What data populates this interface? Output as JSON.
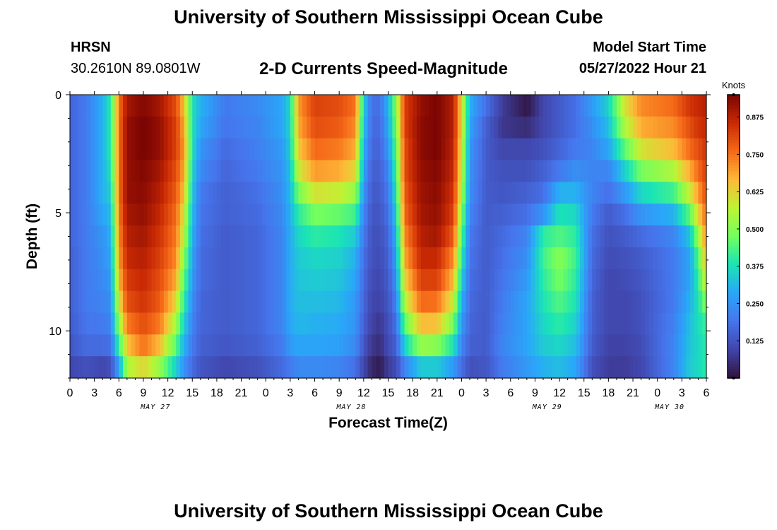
{
  "header": {
    "main_title": "University of Southern Mississippi Ocean Cube",
    "station_id": "HRSN",
    "station_coords": "30.2610N  89.0801W",
    "plot_title": "2-D Currents Speed-Magnitude",
    "model_start_label": "Model Start Time",
    "model_start_value": "05/27/2022 Hour 21"
  },
  "footer": {
    "title": "University of Southern Mississippi Ocean Cube"
  },
  "chart_data": {
    "type": "heatmap",
    "title": "2-D Currents Speed-Magnitude",
    "xlabel": "Forecast Time(Z)",
    "ylabel": "Depth (ft)",
    "colorbar_label": "Knots",
    "xlim": [
      0,
      78
    ],
    "ylim": [
      12,
      0
    ],
    "clim": [
      0,
      0.95
    ],
    "x_ticks": [
      0,
      3,
      6,
      9,
      12,
      15,
      18,
      21,
      24,
      27,
      30,
      33,
      36,
      39,
      42,
      45,
      48,
      51,
      54,
      57,
      60,
      63,
      66,
      69,
      72,
      75,
      78
    ],
    "x_tick_labels": [
      "0",
      "3",
      "6",
      "9",
      "12",
      "15",
      "18",
      "21",
      "0",
      "3",
      "6",
      "9",
      "12",
      "15",
      "18",
      "21",
      "0",
      "3",
      "6",
      "9",
      "12",
      "15",
      "18",
      "21",
      "0",
      "3",
      "6"
    ],
    "date_labels": [
      {
        "x": 10.5,
        "label": "MAY 27"
      },
      {
        "x": 34.5,
        "label": "MAY 28"
      },
      {
        "x": 58.5,
        "label": "MAY 29"
      },
      {
        "x": 73.5,
        "label": "MAY 30"
      }
    ],
    "y_ticks": [
      0,
      5,
      10
    ],
    "y_tick_labels": [
      "0",
      "5",
      "10"
    ],
    "colorbar_ticks": [
      0.125,
      0.25,
      0.375,
      0.5,
      0.625,
      0.75,
      0.875
    ],
    "colorbar_tick_labels": [
      "0.125",
      "0.250",
      "0.375",
      "0.500",
      "0.625",
      "0.750",
      "0.875"
    ],
    "depths": [
      0,
      1,
      2,
      3,
      4,
      5,
      6,
      7,
      8,
      9,
      10,
      11,
      12
    ],
    "profiles": [
      {
        "hour": 0,
        "speeds": [
          0.16,
          0.16,
          0.16,
          0.16,
          0.16,
          0.16,
          0.16,
          0.15,
          0.15,
          0.15,
          0.14,
          0.13,
          0.1
        ]
      },
      {
        "hour": 2,
        "speeds": [
          0.2,
          0.2,
          0.2,
          0.2,
          0.2,
          0.2,
          0.2,
          0.2,
          0.2,
          0.2,
          0.19,
          0.17,
          0.12
        ]
      },
      {
        "hour": 4,
        "speeds": [
          0.3,
          0.3,
          0.3,
          0.3,
          0.3,
          0.28,
          0.25,
          0.24,
          0.23,
          0.22,
          0.2,
          0.17,
          0.1
        ]
      },
      {
        "hour": 5,
        "speeds": [
          0.4,
          0.4,
          0.4,
          0.38,
          0.35,
          0.32,
          0.3,
          0.28,
          0.26,
          0.24,
          0.22,
          0.18,
          0.12
        ]
      },
      {
        "hour": 6,
        "speeds": [
          0.75,
          0.75,
          0.75,
          0.75,
          0.75,
          0.74,
          0.72,
          0.7,
          0.66,
          0.6,
          0.52,
          0.42,
          0.28
        ]
      },
      {
        "hour": 7,
        "speeds": [
          0.9,
          0.92,
          0.92,
          0.92,
          0.92,
          0.9,
          0.88,
          0.86,
          0.83,
          0.8,
          0.74,
          0.65,
          0.55
        ]
      },
      {
        "hour": 9,
        "speeds": [
          0.94,
          0.95,
          0.95,
          0.94,
          0.93,
          0.92,
          0.9,
          0.88,
          0.86,
          0.84,
          0.8,
          0.75,
          0.62
        ]
      },
      {
        "hour": 11,
        "speeds": [
          0.9,
          0.92,
          0.92,
          0.9,
          0.88,
          0.86,
          0.84,
          0.82,
          0.8,
          0.78,
          0.74,
          0.66,
          0.52
        ]
      },
      {
        "hour": 13,
        "speeds": [
          0.8,
          0.82,
          0.82,
          0.8,
          0.78,
          0.76,
          0.74,
          0.72,
          0.68,
          0.62,
          0.54,
          0.45,
          0.35
        ]
      },
      {
        "hour": 14,
        "speeds": [
          0.65,
          0.68,
          0.7,
          0.68,
          0.65,
          0.6,
          0.56,
          0.5,
          0.45,
          0.4,
          0.35,
          0.3,
          0.25
        ]
      },
      {
        "hour": 15,
        "speeds": [
          0.38,
          0.38,
          0.38,
          0.36,
          0.34,
          0.32,
          0.3,
          0.28,
          0.26,
          0.24,
          0.22,
          0.2,
          0.17
        ]
      },
      {
        "hour": 16,
        "speeds": [
          0.3,
          0.28,
          0.25,
          0.23,
          0.2,
          0.19,
          0.18,
          0.17,
          0.17,
          0.16,
          0.16,
          0.15,
          0.13
        ]
      },
      {
        "hour": 19,
        "speeds": [
          0.2,
          0.19,
          0.17,
          0.16,
          0.15,
          0.15,
          0.14,
          0.14,
          0.14,
          0.14,
          0.14,
          0.13,
          0.1
        ]
      },
      {
        "hour": 23,
        "speeds": [
          0.23,
          0.22,
          0.21,
          0.2,
          0.18,
          0.17,
          0.16,
          0.16,
          0.16,
          0.16,
          0.16,
          0.15,
          0.12
        ]
      },
      {
        "hour": 26,
        "speeds": [
          0.28,
          0.28,
          0.26,
          0.25,
          0.24,
          0.23,
          0.22,
          0.22,
          0.22,
          0.22,
          0.22,
          0.2,
          0.17
        ]
      },
      {
        "hour": 27,
        "speeds": [
          0.36,
          0.35,
          0.34,
          0.32,
          0.31,
          0.3,
          0.29,
          0.29,
          0.29,
          0.29,
          0.28,
          0.26,
          0.2
        ]
      },
      {
        "hour": 28,
        "speeds": [
          0.7,
          0.68,
          0.64,
          0.58,
          0.48,
          0.4,
          0.36,
          0.34,
          0.33,
          0.32,
          0.31,
          0.28,
          0.23
        ]
      },
      {
        "hour": 30,
        "speeds": [
          0.82,
          0.8,
          0.76,
          0.7,
          0.6,
          0.48,
          0.4,
          0.36,
          0.34,
          0.32,
          0.3,
          0.28,
          0.23
        ]
      },
      {
        "hour": 33,
        "speeds": [
          0.8,
          0.78,
          0.74,
          0.68,
          0.58,
          0.46,
          0.38,
          0.35,
          0.33,
          0.31,
          0.29,
          0.27,
          0.22
        ]
      },
      {
        "hour": 35,
        "speeds": [
          0.75,
          0.72,
          0.68,
          0.62,
          0.52,
          0.42,
          0.34,
          0.3,
          0.28,
          0.26,
          0.25,
          0.23,
          0.18
        ]
      },
      {
        "hour": 36,
        "speeds": [
          0.35,
          0.33,
          0.3,
          0.28,
          0.25,
          0.22,
          0.2,
          0.18,
          0.17,
          0.16,
          0.15,
          0.13,
          0.1
        ]
      },
      {
        "hour": 37,
        "speeds": [
          0.18,
          0.17,
          0.16,
          0.15,
          0.14,
          0.13,
          0.12,
          0.12,
          0.11,
          0.1,
          0.09,
          0.07,
          0.04
        ]
      },
      {
        "hour": 38,
        "speeds": [
          0.18,
          0.17,
          0.16,
          0.15,
          0.14,
          0.13,
          0.12,
          0.11,
          0.1,
          0.09,
          0.07,
          0.05,
          0.02
        ]
      },
      {
        "hour": 39,
        "speeds": [
          0.3,
          0.28,
          0.25,
          0.22,
          0.2,
          0.18,
          0.16,
          0.15,
          0.14,
          0.13,
          0.12,
          0.11,
          0.08
        ]
      },
      {
        "hour": 40,
        "speeds": [
          0.5,
          0.48,
          0.45,
          0.42,
          0.38,
          0.34,
          0.3,
          0.27,
          0.24,
          0.21,
          0.18,
          0.15,
          0.11
        ]
      },
      {
        "hour": 41,
        "speeds": [
          0.82,
          0.82,
          0.8,
          0.8,
          0.78,
          0.76,
          0.72,
          0.68,
          0.62,
          0.55,
          0.45,
          0.35,
          0.22
        ]
      },
      {
        "hour": 43,
        "speeds": [
          0.92,
          0.93,
          0.93,
          0.92,
          0.91,
          0.9,
          0.88,
          0.86,
          0.82,
          0.76,
          0.66,
          0.52,
          0.34
        ]
      },
      {
        "hour": 45,
        "speeds": [
          0.95,
          0.95,
          0.95,
          0.94,
          0.93,
          0.92,
          0.9,
          0.86,
          0.82,
          0.75,
          0.65,
          0.5,
          0.34
        ]
      },
      {
        "hour": 47,
        "speeds": [
          0.88,
          0.88,
          0.87,
          0.86,
          0.84,
          0.82,
          0.78,
          0.72,
          0.66,
          0.58,
          0.48,
          0.38,
          0.26
        ]
      },
      {
        "hour": 48,
        "speeds": [
          0.62,
          0.62,
          0.6,
          0.58,
          0.55,
          0.5,
          0.45,
          0.4,
          0.35,
          0.3,
          0.26,
          0.22,
          0.18
        ]
      },
      {
        "hour": 49,
        "speeds": [
          0.3,
          0.28,
          0.26,
          0.25,
          0.24,
          0.22,
          0.2,
          0.19,
          0.18,
          0.17,
          0.16,
          0.15,
          0.12
        ]
      },
      {
        "hour": 51,
        "speeds": [
          0.18,
          0.15,
          0.14,
          0.14,
          0.14,
          0.14,
          0.14,
          0.14,
          0.14,
          0.14,
          0.14,
          0.14,
          0.13
        ]
      },
      {
        "hour": 53,
        "speeds": [
          0.08,
          0.07,
          0.1,
          0.12,
          0.13,
          0.15,
          0.17,
          0.18,
          0.19,
          0.2,
          0.21,
          0.22,
          0.2
        ]
      },
      {
        "hour": 56,
        "speeds": [
          0.01,
          0.05,
          0.1,
          0.12,
          0.15,
          0.18,
          0.22,
          0.24,
          0.26,
          0.28,
          0.28,
          0.28,
          0.26
        ]
      },
      {
        "hour": 58,
        "speeds": [
          0.1,
          0.1,
          0.12,
          0.15,
          0.18,
          0.25,
          0.4,
          0.42,
          0.4,
          0.38,
          0.36,
          0.34,
          0.3
        ]
      },
      {
        "hour": 60,
        "speeds": [
          0.14,
          0.14,
          0.16,
          0.2,
          0.3,
          0.38,
          0.44,
          0.5,
          0.48,
          0.44,
          0.4,
          0.36,
          0.32
        ]
      },
      {
        "hour": 62,
        "speeds": [
          0.18,
          0.18,
          0.2,
          0.24,
          0.3,
          0.36,
          0.4,
          0.42,
          0.4,
          0.38,
          0.35,
          0.32,
          0.28
        ]
      },
      {
        "hour": 64,
        "speeds": [
          0.26,
          0.24,
          0.22,
          0.22,
          0.22,
          0.2,
          0.18,
          0.17,
          0.16,
          0.15,
          0.15,
          0.14,
          0.12
        ]
      },
      {
        "hour": 66,
        "speeds": [
          0.35,
          0.32,
          0.28,
          0.22,
          0.18,
          0.14,
          0.12,
          0.11,
          0.1,
          0.1,
          0.1,
          0.09,
          0.08
        ]
      },
      {
        "hour": 68,
        "speeds": [
          0.6,
          0.55,
          0.45,
          0.35,
          0.26,
          0.18,
          0.14,
          0.12,
          0.11,
          0.1,
          0.1,
          0.09,
          0.08
        ]
      },
      {
        "hour": 70,
        "speeds": [
          0.72,
          0.68,
          0.6,
          0.48,
          0.36,
          0.25,
          0.17,
          0.14,
          0.13,
          0.12,
          0.12,
          0.11,
          0.1
        ]
      },
      {
        "hour": 74,
        "speeds": [
          0.76,
          0.72,
          0.66,
          0.55,
          0.42,
          0.3,
          0.22,
          0.2,
          0.2,
          0.2,
          0.21,
          0.22,
          0.22
        ]
      },
      {
        "hour": 76,
        "speeds": [
          0.84,
          0.8,
          0.76,
          0.68,
          0.58,
          0.45,
          0.33,
          0.28,
          0.28,
          0.3,
          0.32,
          0.33,
          0.34
        ]
      },
      {
        "hour": 77,
        "speeds": [
          0.86,
          0.84,
          0.8,
          0.76,
          0.7,
          0.62,
          0.52,
          0.44,
          0.4,
          0.38,
          0.37,
          0.36,
          0.36
        ]
      },
      {
        "hour": 78,
        "speeds": [
          0.88,
          0.86,
          0.84,
          0.82,
          0.8,
          0.76,
          0.72,
          0.66,
          0.6,
          0.5,
          0.42,
          0.4,
          0.4
        ]
      }
    ]
  }
}
